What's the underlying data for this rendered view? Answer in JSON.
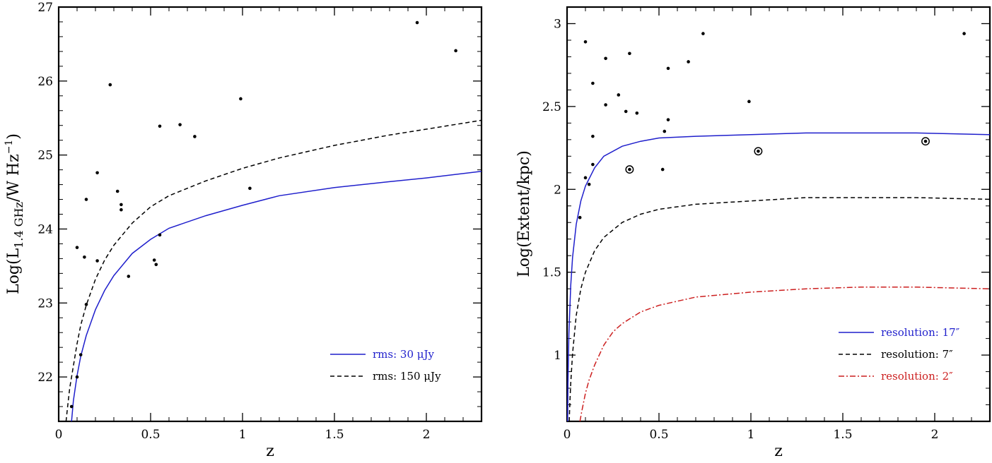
{
  "chart_data": [
    {
      "type": "scatter",
      "xlabel": "z",
      "ylabel_parts": {
        "main": "Log(L",
        "sub": "1.4 GHz",
        "mid": "/W Hz",
        "sup": "−1",
        "end": ")"
      },
      "xlim": [
        0,
        2.3
      ],
      "ylim": [
        21.4,
        27
      ],
      "xticks": [
        0,
        0.5,
        1,
        1.5,
        2
      ],
      "xtick_labels": [
        "0",
        "0.5",
        "1",
        "1.5",
        "2"
      ],
      "yticks": [
        22,
        23,
        24,
        25,
        26,
        27
      ],
      "ytick_labels": [
        "22",
        "23",
        "24",
        "25",
        "26",
        "27"
      ],
      "points": [
        [
          0.07,
          21.6
        ],
        [
          0.1,
          22.0
        ],
        [
          0.12,
          22.3
        ],
        [
          0.1,
          23.75
        ],
        [
          0.14,
          23.62
        ],
        [
          0.15,
          22.98
        ],
        [
          0.15,
          24.4
        ],
        [
          0.21,
          24.76
        ],
        [
          0.21,
          23.57
        ],
        [
          0.28,
          25.95
        ],
        [
          0.32,
          24.51
        ],
        [
          0.34,
          24.33
        ],
        [
          0.34,
          24.26
        ],
        [
          0.38,
          23.36
        ],
        [
          0.52,
          23.58
        ],
        [
          0.53,
          23.52
        ],
        [
          0.55,
          23.92
        ],
        [
          0.55,
          25.39
        ],
        [
          0.66,
          25.41
        ],
        [
          0.74,
          25.25
        ],
        [
          0.99,
          25.76
        ],
        [
          1.04,
          24.55
        ],
        [
          1.95,
          26.79
        ],
        [
          2.16,
          26.41
        ]
      ],
      "series": [
        {
          "name": "rms: 30 μJy",
          "color": "#1f1fcc",
          "dash": "solid",
          "x": [
            0.07,
            0.08,
            0.1,
            0.12,
            0.15,
            0.2,
            0.25,
            0.3,
            0.4,
            0.5,
            0.6,
            0.8,
            1.0,
            1.2,
            1.5,
            1.8,
            2.0,
            2.3
          ],
          "y": [
            21.4,
            21.68,
            22.02,
            22.28,
            22.56,
            22.91,
            23.17,
            23.37,
            23.67,
            23.86,
            24.01,
            24.18,
            24.32,
            24.45,
            24.56,
            24.64,
            24.69,
            24.78
          ]
        },
        {
          "name": "rms: 150 μJy",
          "color": "#000000",
          "dash": "6,4",
          "x": [
            0.04,
            0.05,
            0.06,
            0.08,
            0.1,
            0.12,
            0.15,
            0.2,
            0.25,
            0.3,
            0.4,
            0.5,
            0.6,
            0.8,
            1.0,
            1.2,
            1.5,
            1.8,
            2.0,
            2.3
          ],
          "y": [
            21.4,
            21.63,
            21.85,
            22.15,
            22.45,
            22.7,
            22.97,
            23.32,
            23.58,
            23.78,
            24.08,
            24.3,
            24.45,
            24.65,
            24.82,
            24.96,
            25.13,
            25.27,
            25.35,
            25.47
          ]
        }
      ],
      "legend": [
        {
          "label": "rms:  30 μJy",
          "color": "#1f1fcc",
          "dash": "solid"
        },
        {
          "label": "rms: 150 μJy",
          "color": "#000000",
          "dash": "6,4"
        }
      ],
      "legend_position": "lower-right"
    },
    {
      "type": "scatter",
      "xlabel": "z",
      "ylabel": "Log(Extent/kpc)",
      "xlim": [
        0,
        2.3
      ],
      "ylim": [
        0.6,
        3.1
      ],
      "xticks": [
        0,
        0.5,
        1,
        1.5,
        2
      ],
      "xtick_labels": [
        "0",
        "0.5",
        "1",
        "1.5",
        "2"
      ],
      "yticks": [
        1,
        1.5,
        2,
        2.5,
        3
      ],
      "ytick_labels": [
        "1",
        "1.5",
        "2",
        "2.5",
        "3"
      ],
      "points": [
        [
          0.07,
          1.83
        ],
        [
          0.1,
          2.89
        ],
        [
          0.1,
          2.07
        ],
        [
          0.12,
          2.03
        ],
        [
          0.14,
          2.64
        ],
        [
          0.14,
          2.32
        ],
        [
          0.14,
          2.15
        ],
        [
          0.21,
          2.79
        ],
        [
          0.21,
          2.51
        ],
        [
          0.28,
          2.57
        ],
        [
          0.32,
          2.47
        ],
        [
          0.34,
          2.82
        ],
        [
          0.38,
          2.46
        ],
        [
          0.52,
          2.12
        ],
        [
          0.53,
          2.35
        ],
        [
          0.55,
          2.42
        ],
        [
          0.55,
          2.73
        ],
        [
          0.66,
          2.77
        ],
        [
          0.74,
          2.94
        ],
        [
          0.99,
          2.53
        ],
        [
          2.16,
          2.94
        ]
      ],
      "circled_points": [
        [
          0.34,
          2.12
        ],
        [
          1.04,
          2.23
        ],
        [
          1.95,
          2.29
        ]
      ],
      "series": [
        {
          "name": "resolution: 17″",
          "color": "#1f1fcc",
          "dash": "solid",
          "x": [
            0.003,
            0.005,
            0.01,
            0.02,
            0.03,
            0.05,
            0.075,
            0.1,
            0.15,
            0.2,
            0.3,
            0.4,
            0.5,
            0.7,
            1.0,
            1.3,
            1.6,
            1.9,
            2.3
          ],
          "y": [
            0.6,
            0.83,
            1.13,
            1.42,
            1.59,
            1.79,
            1.93,
            2.02,
            2.13,
            2.2,
            2.26,
            2.29,
            2.31,
            2.32,
            2.33,
            2.34,
            2.34,
            2.34,
            2.33
          ]
        },
        {
          "name": "resolution: 7″",
          "color": "#000000",
          "dash": "6,4",
          "x": [
            0.012,
            0.015,
            0.02,
            0.03,
            0.05,
            0.075,
            0.1,
            0.15,
            0.2,
            0.3,
            0.4,
            0.5,
            0.7,
            1.0,
            1.3,
            1.6,
            1.9,
            2.3
          ],
          "y": [
            0.6,
            0.71,
            0.83,
            1.01,
            1.24,
            1.4,
            1.5,
            1.63,
            1.71,
            1.8,
            1.85,
            1.88,
            1.91,
            1.93,
            1.95,
            1.95,
            1.95,
            1.94
          ]
        },
        {
          "name": "resolution: 2″",
          "color": "#cc1f1f",
          "dash": "8,3,2,3",
          "x": [
            0.07,
            0.08,
            0.1,
            0.12,
            0.15,
            0.2,
            0.25,
            0.3,
            0.4,
            0.5,
            0.7,
            1.0,
            1.3,
            1.6,
            1.9,
            2.3
          ],
          "y": [
            0.6,
            0.66,
            0.77,
            0.85,
            0.94,
            1.06,
            1.14,
            1.19,
            1.26,
            1.3,
            1.35,
            1.38,
            1.4,
            1.41,
            1.41,
            1.4
          ]
        }
      ],
      "legend": [
        {
          "label": "resolution: 17″",
          "color": "#1f1fcc",
          "dash": "solid"
        },
        {
          "label": "resolution:  7″",
          "color": "#000000",
          "dash": "6,4"
        },
        {
          "label": "resolution:  2″",
          "color": "#cc1f1f",
          "dash": "8,3,2,3"
        }
      ],
      "legend_position": "lower-right"
    }
  ]
}
